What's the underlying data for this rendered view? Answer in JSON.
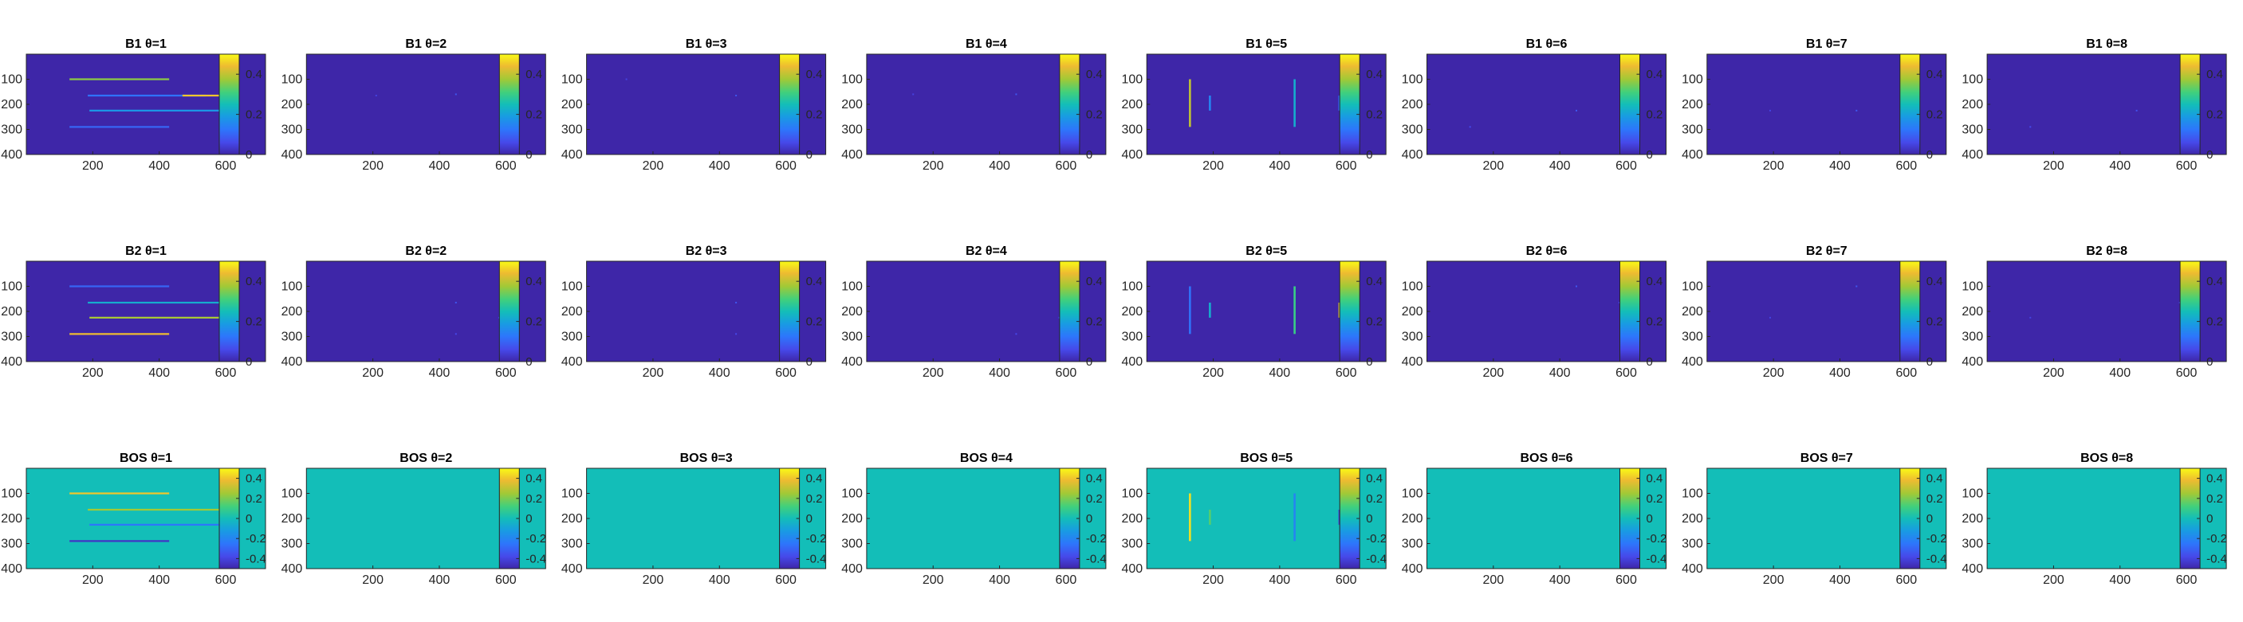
{
  "figure": {
    "rows": [
      {
        "label": "B1",
        "colormap": "parula",
        "colorbar": {
          "range": [
            0,
            0.5
          ],
          "ticks": [
            "0",
            "0.2",
            "0.4"
          ]
        }
      },
      {
        "label": "B2",
        "colormap": "parula",
        "colorbar": {
          "range": [
            0,
            0.5
          ],
          "ticks": [
            "0",
            "0.2",
            "0.4"
          ]
        }
      },
      {
        "label": "BOS",
        "colormap": "parula",
        "colorbar": {
          "range": [
            -0.5,
            0.5
          ],
          "ticks": [
            "0.4",
            "0.2",
            "0",
            "-0.2",
            "-0.4"
          ]
        }
      }
    ],
    "theta_values": [
      1,
      2,
      3,
      4,
      5,
      6,
      7,
      8
    ],
    "axes": {
      "xlim": [
        0,
        720
      ],
      "ylim": [
        400,
        0
      ],
      "xticks": [
        "200",
        "400",
        "600"
      ],
      "yticks": [
        "100",
        "200",
        "300",
        "400"
      ],
      "y_direction": "reverse"
    },
    "colors": {
      "background_zero": "#3E26A8",
      "background_bos": "#13BEB8"
    }
  },
  "chart_data": [
    {
      "type": "heatmap",
      "title": "B1 θ=1",
      "row": 0,
      "col": 0,
      "features": [
        {
          "kind": "h",
          "y": 100,
          "x0": 130,
          "x1": 430,
          "v": 0.36
        },
        {
          "kind": "h",
          "y": 165,
          "x0": 185,
          "x1": 540,
          "v": 0.12
        },
        {
          "kind": "h",
          "y": 165,
          "x0": 470,
          "x1": 600,
          "v": 0.45
        },
        {
          "kind": "h",
          "y": 225,
          "x0": 190,
          "x1": 600,
          "v": 0.18
        },
        {
          "kind": "h",
          "y": 290,
          "x0": 130,
          "x1": 430,
          "v": 0.1
        }
      ]
    },
    {
      "type": "heatmap",
      "title": "B1 θ=2",
      "row": 0,
      "col": 1,
      "features": [
        {
          "kind": "dot",
          "x": 450,
          "y": 160,
          "v": 0.08
        },
        {
          "kind": "dot",
          "x": 210,
          "y": 165,
          "v": 0.05
        }
      ]
    },
    {
      "type": "heatmap",
      "title": "B1 θ=3",
      "row": 0,
      "col": 2,
      "features": [
        {
          "kind": "dot",
          "x": 450,
          "y": 165,
          "v": 0.08
        },
        {
          "kind": "dot",
          "x": 120,
          "y": 100,
          "v": 0.05
        }
      ]
    },
    {
      "type": "heatmap",
      "title": "B1 θ=4",
      "row": 0,
      "col": 3,
      "features": [
        {
          "kind": "dot",
          "x": 450,
          "y": 160,
          "v": 0.08
        },
        {
          "kind": "dot",
          "x": 140,
          "y": 160,
          "v": 0.05
        }
      ]
    },
    {
      "type": "heatmap",
      "title": "B1 θ=5",
      "row": 0,
      "col": 4,
      "features": [
        {
          "kind": "v",
          "x": 130,
          "y0": 100,
          "y1": 290,
          "v": 0.4
        },
        {
          "kind": "v",
          "x": 190,
          "y0": 165,
          "y1": 225,
          "v": 0.15
        },
        {
          "kind": "v",
          "x": 445,
          "y0": 100,
          "y1": 290,
          "v": 0.22
        },
        {
          "kind": "v",
          "x": 580,
          "y0": 165,
          "y1": 225,
          "v": 0.12
        }
      ]
    },
    {
      "type": "heatmap",
      "title": "B1 θ=6",
      "row": 0,
      "col": 5,
      "features": [
        {
          "kind": "dot",
          "x": 450,
          "y": 225,
          "v": 0.08
        },
        {
          "kind": "dot",
          "x": 130,
          "y": 290,
          "v": 0.06
        }
      ]
    },
    {
      "type": "heatmap",
      "title": "B1 θ=7",
      "row": 0,
      "col": 6,
      "features": [
        {
          "kind": "dot",
          "x": 450,
          "y": 225,
          "v": 0.08
        },
        {
          "kind": "dot",
          "x": 190,
          "y": 225,
          "v": 0.05
        }
      ]
    },
    {
      "type": "heatmap",
      "title": "B1 θ=8",
      "row": 0,
      "col": 7,
      "features": [
        {
          "kind": "dot",
          "x": 450,
          "y": 225,
          "v": 0.07
        },
        {
          "kind": "dot",
          "x": 130,
          "y": 290,
          "v": 0.06
        }
      ]
    },
    {
      "type": "heatmap",
      "title": "B2 θ=1",
      "row": 1,
      "col": 0,
      "features": [
        {
          "kind": "h",
          "y": 100,
          "x0": 130,
          "x1": 430,
          "v": 0.1
        },
        {
          "kind": "h",
          "y": 165,
          "x0": 185,
          "x1": 600,
          "v": 0.22
        },
        {
          "kind": "h",
          "y": 225,
          "x0": 190,
          "x1": 600,
          "v": 0.38
        },
        {
          "kind": "h",
          "y": 290,
          "x0": 130,
          "x1": 430,
          "v": 0.44
        }
      ]
    },
    {
      "type": "heatmap",
      "title": "B2 θ=2",
      "row": 1,
      "col": 1,
      "features": [
        {
          "kind": "dot",
          "x": 450,
          "y": 165,
          "v": 0.08
        },
        {
          "kind": "dot",
          "x": 450,
          "y": 290,
          "v": 0.06
        },
        {
          "kind": "dot",
          "x": 580,
          "y": 225,
          "v": 0.06
        }
      ]
    },
    {
      "type": "heatmap",
      "title": "B2 θ=3",
      "row": 1,
      "col": 2,
      "features": [
        {
          "kind": "dot",
          "x": 450,
          "y": 165,
          "v": 0.08
        },
        {
          "kind": "dot",
          "x": 450,
          "y": 290,
          "v": 0.06
        }
      ]
    },
    {
      "type": "heatmap",
      "title": "B2 θ=4",
      "row": 1,
      "col": 3,
      "features": [
        {
          "kind": "dot",
          "x": 450,
          "y": 290,
          "v": 0.06
        },
        {
          "kind": "dot",
          "x": 580,
          "y": 225,
          "v": 0.08
        }
      ]
    },
    {
      "type": "heatmap",
      "title": "B2 θ=5",
      "row": 1,
      "col": 4,
      "features": [
        {
          "kind": "v",
          "x": 130,
          "y0": 100,
          "y1": 290,
          "v": 0.12
        },
        {
          "kind": "v",
          "x": 190,
          "y0": 165,
          "y1": 225,
          "v": 0.22
        },
        {
          "kind": "v",
          "x": 445,
          "y0": 100,
          "y1": 290,
          "v": 0.3
        },
        {
          "kind": "v",
          "x": 580,
          "y0": 165,
          "y1": 225,
          "v": 0.42
        }
      ]
    },
    {
      "type": "heatmap",
      "title": "B2 θ=6",
      "row": 1,
      "col": 5,
      "features": [
        {
          "kind": "dot",
          "x": 450,
          "y": 100,
          "v": 0.08
        },
        {
          "kind": "dot",
          "x": 580,
          "y": 165,
          "v": 0.08
        }
      ]
    },
    {
      "type": "heatmap",
      "title": "B2 θ=7",
      "row": 1,
      "col": 6,
      "features": [
        {
          "kind": "dot",
          "x": 450,
          "y": 100,
          "v": 0.08
        },
        {
          "kind": "dot",
          "x": 190,
          "y": 225,
          "v": 0.05
        }
      ]
    },
    {
      "type": "heatmap",
      "title": "B2 θ=8",
      "row": 1,
      "col": 7,
      "features": [
        {
          "kind": "dot",
          "x": 580,
          "y": 165,
          "v": 0.08
        },
        {
          "kind": "dot",
          "x": 130,
          "y": 225,
          "v": 0.05
        }
      ]
    },
    {
      "type": "heatmap",
      "title": "BOS θ=1",
      "row": 2,
      "col": 0,
      "features": [
        {
          "kind": "h",
          "y": 100,
          "x0": 130,
          "x1": 430,
          "v": 0.4
        },
        {
          "kind": "h",
          "y": 165,
          "x0": 185,
          "x1": 600,
          "v": 0.25
        },
        {
          "kind": "h",
          "y": 225,
          "x0": 190,
          "x1": 600,
          "v": -0.25
        },
        {
          "kind": "h",
          "y": 290,
          "x0": 130,
          "x1": 430,
          "v": -0.45
        }
      ]
    },
    {
      "type": "heatmap",
      "title": "BOS θ=2",
      "row": 2,
      "col": 1,
      "features": []
    },
    {
      "type": "heatmap",
      "title": "BOS θ=3",
      "row": 2,
      "col": 2,
      "features": []
    },
    {
      "type": "heatmap",
      "title": "BOS θ=4",
      "row": 2,
      "col": 3,
      "features": []
    },
    {
      "type": "heatmap",
      "title": "BOS θ=5",
      "row": 2,
      "col": 4,
      "features": [
        {
          "kind": "v",
          "x": 130,
          "y0": 100,
          "y1": 290,
          "v": 0.45
        },
        {
          "kind": "v",
          "x": 190,
          "y0": 165,
          "y1": 225,
          "v": 0.15
        },
        {
          "kind": "v",
          "x": 445,
          "y0": 100,
          "y1": 290,
          "v": -0.2
        },
        {
          "kind": "v",
          "x": 580,
          "y0": 165,
          "y1": 225,
          "v": -0.42
        }
      ]
    },
    {
      "type": "heatmap",
      "title": "BOS θ=6",
      "row": 2,
      "col": 5,
      "features": []
    },
    {
      "type": "heatmap",
      "title": "BOS θ=7",
      "row": 2,
      "col": 6,
      "features": []
    },
    {
      "type": "heatmap",
      "title": "BOS θ=8",
      "row": 2,
      "col": 7,
      "features": []
    }
  ]
}
